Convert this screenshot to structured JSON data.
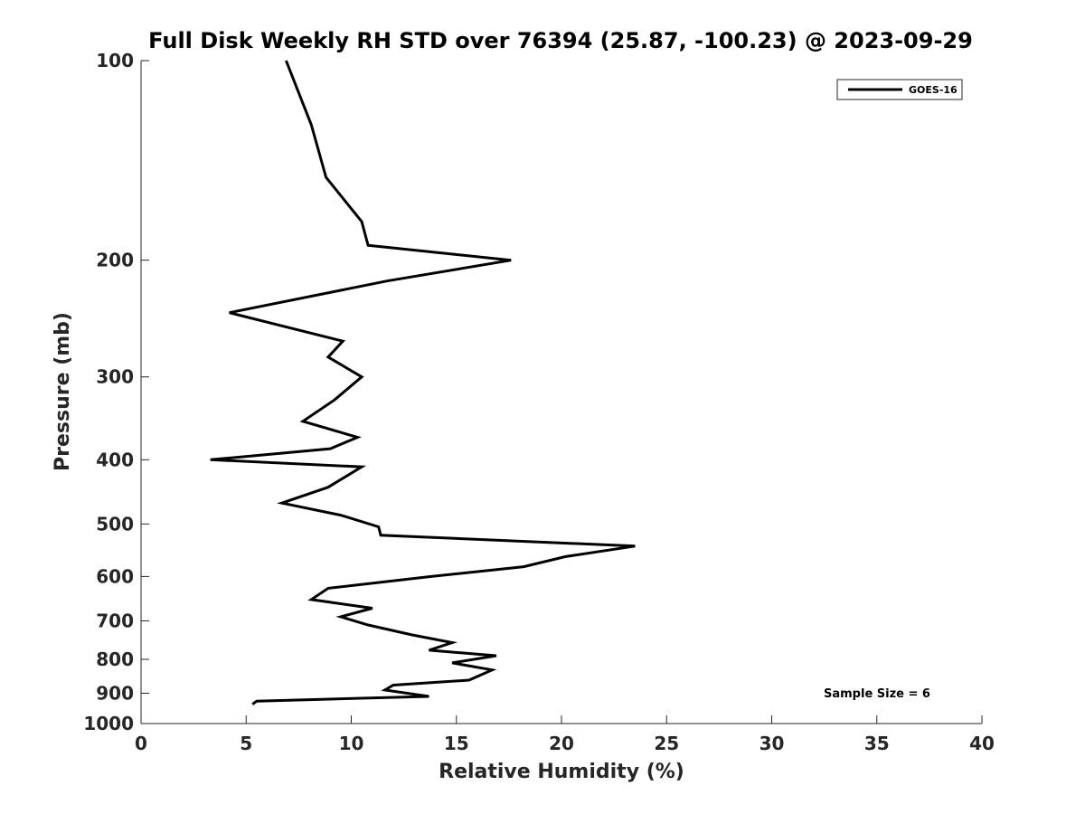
{
  "chart_data": {
    "type": "line",
    "title": "Full Disk Weekly RH STD over 76394 (25.87, -100.23) @ 2023-09-29",
    "xlabel": "Relative Humidity (%)",
    "ylabel": "Pressure (mb)",
    "xlim": [
      0,
      40
    ],
    "ylim": [
      100,
      1000
    ],
    "y_scale": "log",
    "y_reversed": true,
    "grid": false,
    "legend_placement": "top-right",
    "annotation": "Sample Size = 6",
    "x_ticks": [
      "0",
      "5",
      "10",
      "15",
      "20",
      "25",
      "30",
      "35",
      "40"
    ],
    "x_tick_values": [
      0,
      5,
      10,
      15,
      20,
      25,
      30,
      35,
      40
    ],
    "y_ticks": [
      "100",
      "200",
      "300",
      "400",
      "500",
      "600",
      "700",
      "800",
      "900",
      "1000"
    ],
    "y_tick_values": [
      100,
      200,
      300,
      400,
      500,
      600,
      700,
      800,
      900,
      1000
    ],
    "series": [
      {
        "name": "GOES-16",
        "color": "#000000",
        "points": [
          [
            6.9,
            100
          ],
          [
            8.1,
            125
          ],
          [
            8.8,
            150
          ],
          [
            10.5,
            175
          ],
          [
            10.8,
            190
          ],
          [
            17.6,
            200
          ],
          [
            11.7,
            215
          ],
          [
            4.2,
            240
          ],
          [
            9.6,
            265
          ],
          [
            8.9,
            280
          ],
          [
            10.5,
            300
          ],
          [
            9.2,
            325
          ],
          [
            7.7,
            350
          ],
          [
            10.3,
            370
          ],
          [
            9.0,
            385
          ],
          [
            3.3,
            400
          ],
          [
            10.5,
            410
          ],
          [
            8.9,
            440
          ],
          [
            6.7,
            465
          ],
          [
            9.5,
            485
          ],
          [
            11.3,
            505
          ],
          [
            11.4,
            520
          ],
          [
            23.5,
            540
          ],
          [
            20.2,
            560
          ],
          [
            18.2,
            580
          ],
          [
            13.8,
            600
          ],
          [
            8.9,
            625
          ],
          [
            8.1,
            650
          ],
          [
            11.0,
            670
          ],
          [
            9.5,
            690
          ],
          [
            10.8,
            710
          ],
          [
            12.9,
            735
          ],
          [
            14.8,
            755
          ],
          [
            13.7,
            775
          ],
          [
            16.9,
            790
          ],
          [
            14.8,
            810
          ],
          [
            16.7,
            830
          ],
          [
            15.6,
            860
          ],
          [
            12.0,
            875
          ],
          [
            11.6,
            890
          ],
          [
            13.7,
            910
          ],
          [
            5.5,
            925
          ],
          [
            5.3,
            935
          ]
        ]
      }
    ]
  }
}
